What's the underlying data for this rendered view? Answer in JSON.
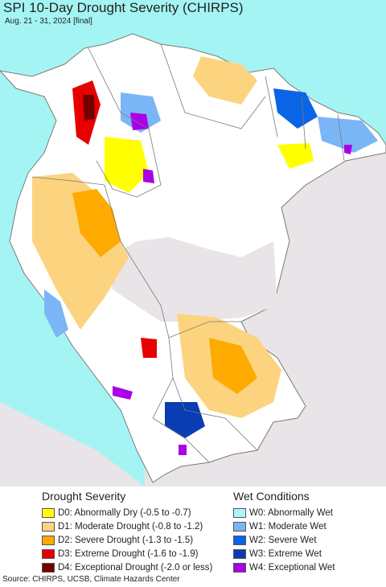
{
  "header": {
    "title": "SPI 10-Day Drought Severity (CHIRPS)",
    "subtitle": "Aug. 21 - 31, 2024 [final]"
  },
  "colors": {
    "ocean": "#a5f4f4",
    "land_normal": "#ffffff",
    "outside": "#e8e4e8",
    "border": "#7a7a7a"
  },
  "legend": {
    "drought": {
      "heading": "Drought Severity",
      "items": [
        {
          "label": "D0: Abnormally Dry (-0.5 to -0.7)",
          "color": "#ffff00"
        },
        {
          "label": "D1: Moderate Drought (-0.8 to -1.2)",
          "color": "#fcd37f"
        },
        {
          "label": "D2: Severe Drought (-1.3 to -1.5)",
          "color": "#ffaa00"
        },
        {
          "label": "D3: Extreme Drought (-1.6 to -1.9)",
          "color": "#e60000"
        },
        {
          "label": "D4: Exceptional Drought (-2.0 or less)",
          "color": "#730000"
        }
      ]
    },
    "wet": {
      "heading": "Wet Conditions",
      "items": [
        {
          "label": "W0: Abnormally Wet",
          "color": "#aaf5ff"
        },
        {
          "label": "W1: Moderate Wet",
          "color": "#7ab6f5"
        },
        {
          "label": "W2: Severe Wet",
          "color": "#0a64e6"
        },
        {
          "label": "W3: Extreme Wet",
          "color": "#0a3cb4"
        },
        {
          "label": "W4: Exceptional Wet",
          "color": "#aa00e6"
        }
      ]
    }
  },
  "source": "Source: CHIRPS, UCSB, Climate Hazards Center"
}
